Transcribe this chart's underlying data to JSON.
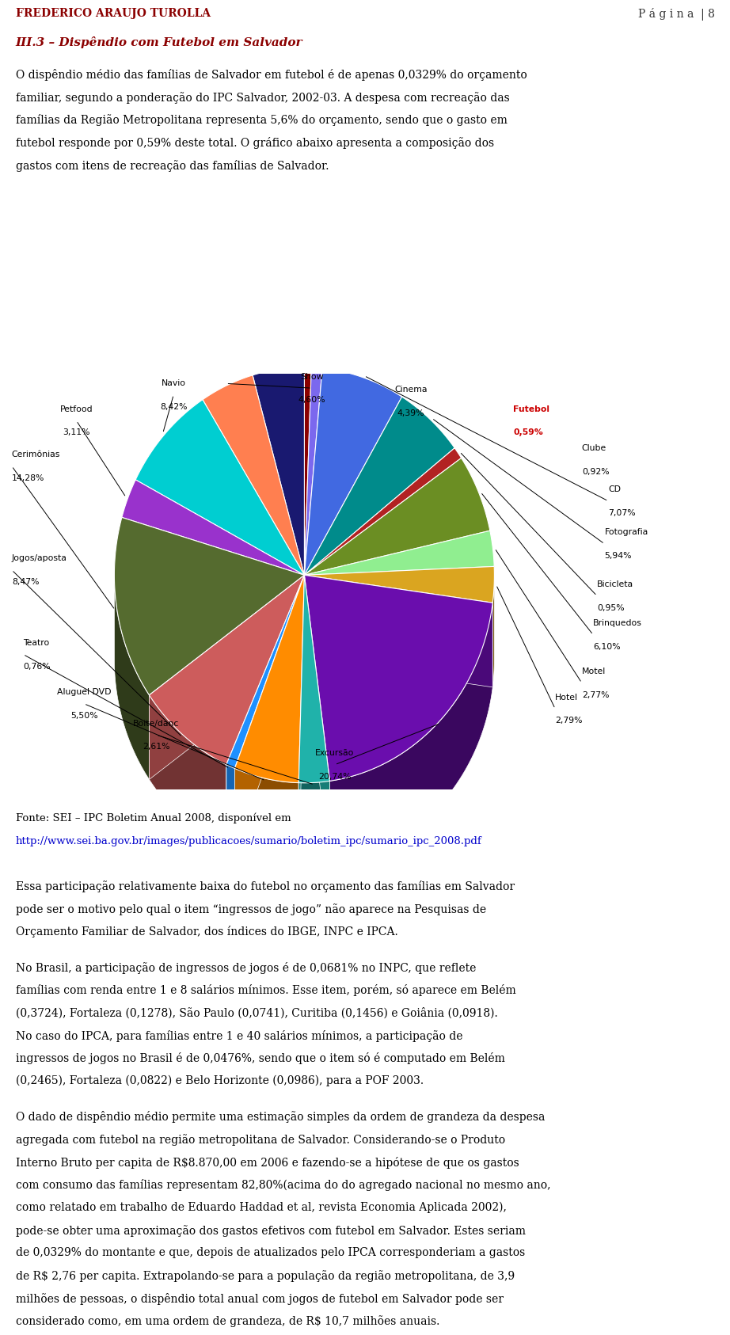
{
  "slices": [
    {
      "label": "Futebol",
      "pct": 0.59,
      "color": "#8B0000"
    },
    {
      "label": "Clube",
      "pct": 0.92,
      "color": "#7B68EE"
    },
    {
      "label": "CD",
      "pct": 7.07,
      "color": "#4169E1"
    },
    {
      "label": "Fotografia",
      "pct": 5.94,
      "color": "#008B8B"
    },
    {
      "label": "Bicicleta",
      "pct": 0.95,
      "color": "#B22222"
    },
    {
      "label": "Brinquedos",
      "pct": 6.1,
      "color": "#6B8E23"
    },
    {
      "label": "Motel",
      "pct": 2.77,
      "color": "#90EE90"
    },
    {
      "label": "Hotel",
      "pct": 2.79,
      "color": "#DAA520"
    },
    {
      "label": "Excursão",
      "pct": 20.74,
      "color": "#6A0DAD"
    },
    {
      "label": "Boite/danc",
      "pct": 2.61,
      "color": "#20B2AA"
    },
    {
      "label": "Aluguel DVD",
      "pct": 5.5,
      "color": "#FF8C00"
    },
    {
      "label": "Teatro",
      "pct": 0.76,
      "color": "#1E90FF"
    },
    {
      "label": "Jogos/aposta",
      "pct": 8.47,
      "color": "#CD5C5C"
    },
    {
      "label": "Cerimônias",
      "pct": 14.28,
      "color": "#556B2F"
    },
    {
      "label": "Petfood",
      "pct": 3.11,
      "color": "#9932CC"
    },
    {
      "label": "Navio",
      "pct": 8.42,
      "color": "#00CED1"
    },
    {
      "label": "Show",
      "pct": 4.6,
      "color": "#FF7F50"
    },
    {
      "label": "Cinema",
      "pct": 4.39,
      "color": "#191970"
    }
  ],
  "bg_color": "#FFFFFF",
  "futebol_color": "#CC0000",
  "header_left": "FREDERICO ARAUJO TUROLLA",
  "header_right": "P á g i n a  | 8",
  "section_title": "III.3 – Dispêndio com Futebol em Salvador",
  "para1": "O dispêndio médio das famílias de Salvador em futebol é de apenas 0,0329% do orçamento familiar, segundo a ponderação do IPC Salvador, 2002-03. A despesa com recreação das famílias da Região Metropolitana representa 5,6% do orçamento, sendo que o gasto em futebol responde por 0,59% deste total. O gráfico abaixo apresenta a composição dos gastos com itens de recreação das famílias de Salvador.",
  "source_line1": "Fonte: SEI – IPC Boletim Anual 2008, disponível em",
  "source_line2": "http://www.sei.ba.gov.br/images/publicacoes/sumario/boletim_ipc/sumario_ipc_2008.pdf",
  "para2": "Essa participação relativamente baixa do futebol no orçamento das famílias em Salvador pode ser o motivo pelo qual o item “ingressos de jogo” não aparece na Pesquisas de Orçamento Familiar de Salvador, dos índices do IBGE, INPC e IPCA.",
  "para3": "No Brasil, a participação de ingressos de jogos é de 0,0681% no INPC, que reflete famílias com renda entre 1 e 8 salários mínimos. Esse item, porém, só aparece em Belém (0,3724), Fortaleza (0,1278), São Paulo (0,0741), Curitiba (0,1456) e Goiânia (0,0918). No caso do IPCA, para famílias entre 1 e 40 salários mínimos, a participação de ingressos de jogos no Brasil é de 0,0476%, sendo que o item só é computado em Belém (0,2465), Fortaleza (0,0822) e Belo Horizonte (0,0986), para a POF 2003.",
  "para4": "O dado de dispêndio médio permite uma estimação simples da ordem de grandeza da despesa agregada com futebol na região metropolitana de Salvador. Considerando-se o Produto Interno Bruto per capita de R$8.870,00 em 2006 e fazendo-se a hipótese de que os gastos com consumo das famílias representam 82,80%(acima do do agregado nacional no mesmo ano, como relatado em trabalho de Eduardo Haddad et al, revista Economia Aplicada 2002), pode-se obter uma aproximação dos gastos efetivos com futebol em Salvador. Estes seriam de 0,0329% do montante e que, depois de atualizados pelo IPCA corresponderiam a gastos de R$ 2,76 per capita. Extrapolando-se para a população da região metropolitana, de 3,9 milhões de pessoas, o dispêndio total anual com jogos de futebol em Salvador pode ser considerado como, em uma ordem de grandeza, de R$ 10,7 milhões anuais."
}
